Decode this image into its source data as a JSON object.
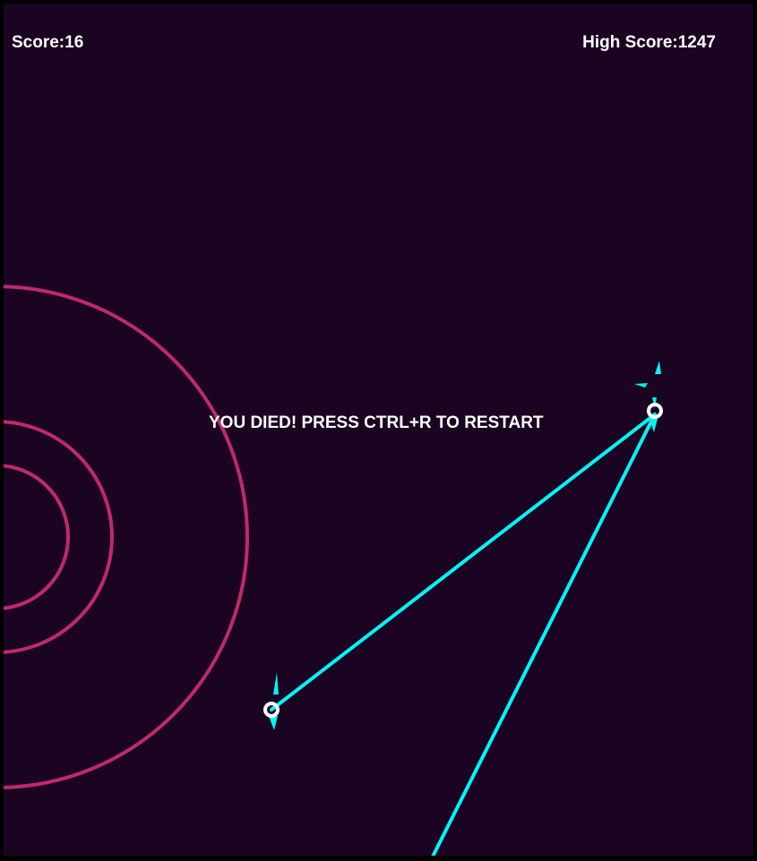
{
  "hud": {
    "score_label": "Score:",
    "score_value": "16",
    "high_score_label": "High Score:",
    "high_score_value": "1247"
  },
  "message": {
    "death_text": "YOU DIED! PRESS CTRL+R TO RESTART"
  },
  "colors": {
    "background": "#1b0322",
    "frame": "#000000",
    "rings": "#c0296a",
    "beams": "#00f5f5",
    "player": "#ffffff",
    "text": "#ffffff"
  },
  "icons": {
    "player": "ring-outline-icon",
    "thrust": "flame-spike-icon"
  }
}
